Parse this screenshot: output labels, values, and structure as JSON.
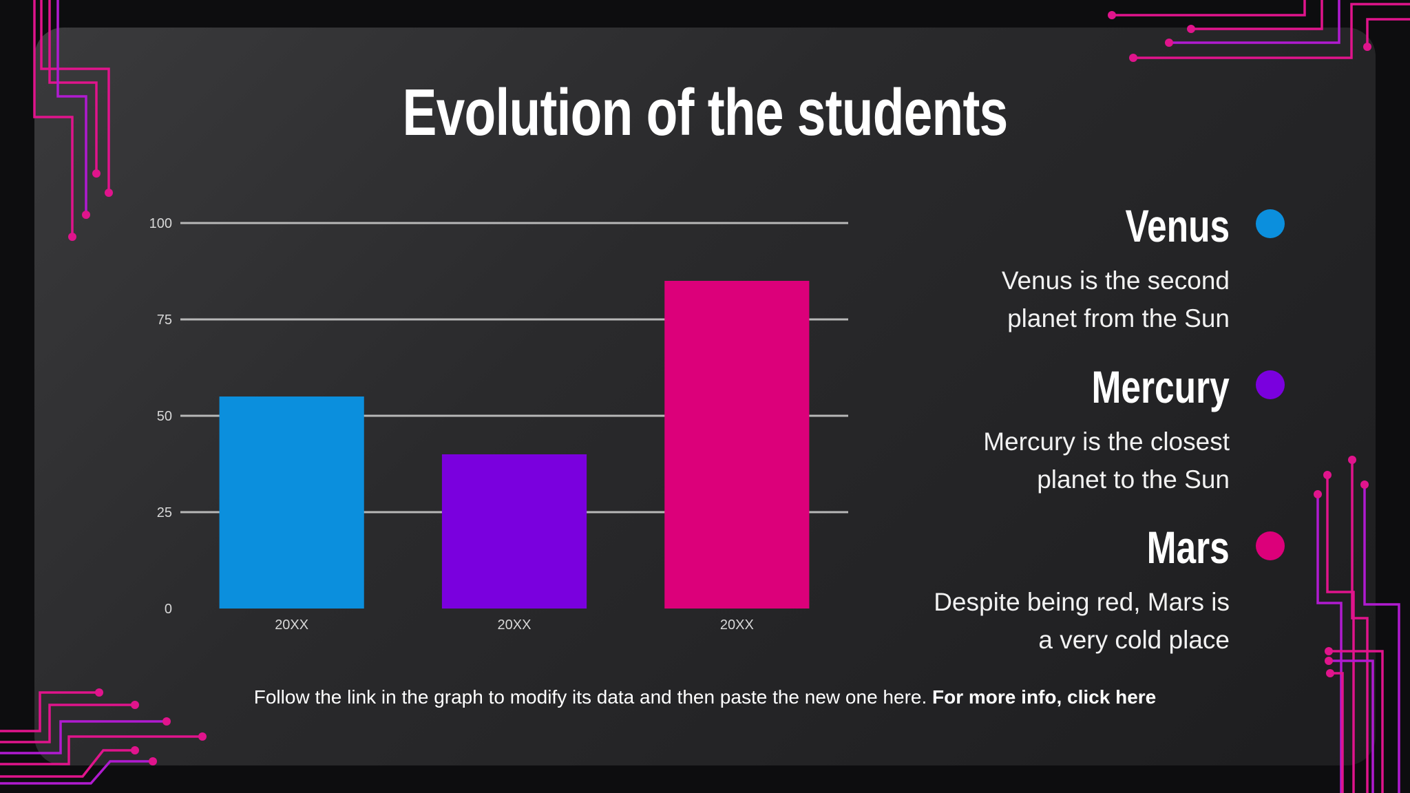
{
  "title": "Evolution of the students",
  "colors": {
    "venus": "#0b8fdd",
    "mercury": "#7a00de",
    "mars": "#dc007a",
    "circuit": "#e0148c",
    "circuit_alt": "#b01bd0"
  },
  "legend": [
    {
      "name": "Venus",
      "description_line1": "Venus is the second",
      "description_line2": "planet from the Sun",
      "color": "#0b8fdd"
    },
    {
      "name": "Mercury",
      "description_line1": "Mercury is the closest",
      "description_line2": "planet to the Sun",
      "color": "#7a00de"
    },
    {
      "name": "Mars",
      "description_line1": "Despite being red, Mars is",
      "description_line2": "a very cold place",
      "color": "#dc007a"
    }
  ],
  "footer": {
    "text": "Follow the link in the graph to modify its data and then paste the new one here.",
    "link": "For more info, click here"
  },
  "chart_data": {
    "type": "bar",
    "title": "",
    "xlabel": "",
    "ylabel": "",
    "categories": [
      "20XX",
      "20XX",
      "20XX"
    ],
    "values": [
      55,
      40,
      85
    ],
    "colors": [
      "#0b8fdd",
      "#7a00de",
      "#dc007a"
    ],
    "ylim": [
      0,
      100
    ],
    "yticks": [
      0,
      25,
      50,
      75,
      100
    ],
    "grid": true,
    "legend": "none"
  }
}
